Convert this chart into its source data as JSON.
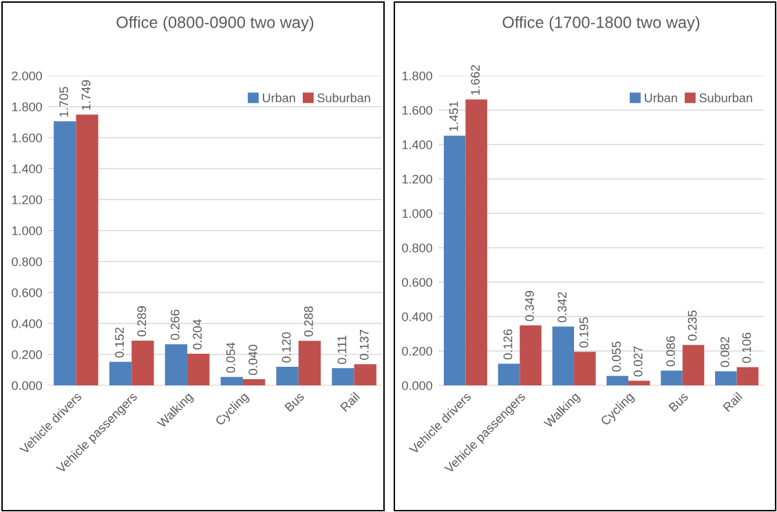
{
  "chart_data": [
    {
      "type": "bar",
      "title": "Office (0800-0900 two way)",
      "categories": [
        "Vehicle drivers",
        "Vehicle passengers",
        "Walking",
        "Cycling",
        "Bus",
        "Rail"
      ],
      "series": [
        {
          "name": "Urban",
          "color": "#4f81bd",
          "values": [
            1.705,
            0.152,
            0.266,
            0.054,
            0.12,
            0.111
          ],
          "value_labels": [
            "1.705",
            "0.152",
            "0.266",
            "0.054",
            "0.120",
            "0.111"
          ]
        },
        {
          "name": "Suburban",
          "color": "#c0504d",
          "values": [
            1.749,
            0.289,
            0.204,
            0.04,
            0.288,
            0.137
          ],
          "value_labels": [
            "1.749",
            "0.289",
            "0.204",
            "0.040",
            "0.288",
            "0.137"
          ]
        }
      ],
      "ylim": [
        0,
        2.0
      ],
      "yticks": [
        {
          "value": 0,
          "label": "0.000"
        },
        {
          "value": 0.2,
          "label": "0.200"
        },
        {
          "value": 0.4,
          "label": "0.400"
        },
        {
          "value": 0.6,
          "label": "0.600"
        },
        {
          "value": 0.8,
          "label": "0.800"
        },
        {
          "value": 1.0,
          "label": "1.000"
        },
        {
          "value": 1.2,
          "label": "1.200"
        },
        {
          "value": 1.4,
          "label": "1.400"
        },
        {
          "value": 1.6,
          "label": "1.600"
        },
        {
          "value": 1.8,
          "label": "1.800"
        },
        {
          "value": 2.0,
          "label": "2.000"
        }
      ],
      "grid": "y",
      "legend": "top right"
    },
    {
      "type": "bar",
      "title": "Office (1700-1800 two way)",
      "categories": [
        "Vehicle drivers",
        "Vehicle passengers",
        "Walking",
        "Cycling",
        "Bus",
        "Rail"
      ],
      "series": [
        {
          "name": "Urban",
          "color": "#4f81bd",
          "values": [
            1.451,
            0.126,
            0.342,
            0.055,
            0.086,
            0.082
          ],
          "value_labels": [
            "1.451",
            "0.126",
            "0.342",
            "0.055",
            "0.086",
            "0.082"
          ]
        },
        {
          "name": "Suburban",
          "color": "#c0504d",
          "values": [
            1.662,
            0.349,
            0.195,
            0.027,
            0.235,
            0.106
          ],
          "value_labels": [
            "1.662",
            "0.349",
            "0.195",
            "0.027",
            "0.235",
            "0.106"
          ]
        }
      ],
      "ylim": [
        0,
        1.8
      ],
      "yticks": [
        {
          "value": 0,
          "label": "0.000"
        },
        {
          "value": 0.2,
          "label": "0.200"
        },
        {
          "value": 0.4,
          "label": "0.400"
        },
        {
          "value": 0.6,
          "label": "0.600"
        },
        {
          "value": 0.8,
          "label": "0.800"
        },
        {
          "value": 1.0,
          "label": "1.000"
        },
        {
          "value": 1.2,
          "label": "1.200"
        },
        {
          "value": 1.4,
          "label": "1.400"
        },
        {
          "value": 1.6,
          "label": "1.600"
        },
        {
          "value": 1.8,
          "label": "1.800"
        }
      ],
      "grid": "y",
      "legend": "top right"
    }
  ]
}
